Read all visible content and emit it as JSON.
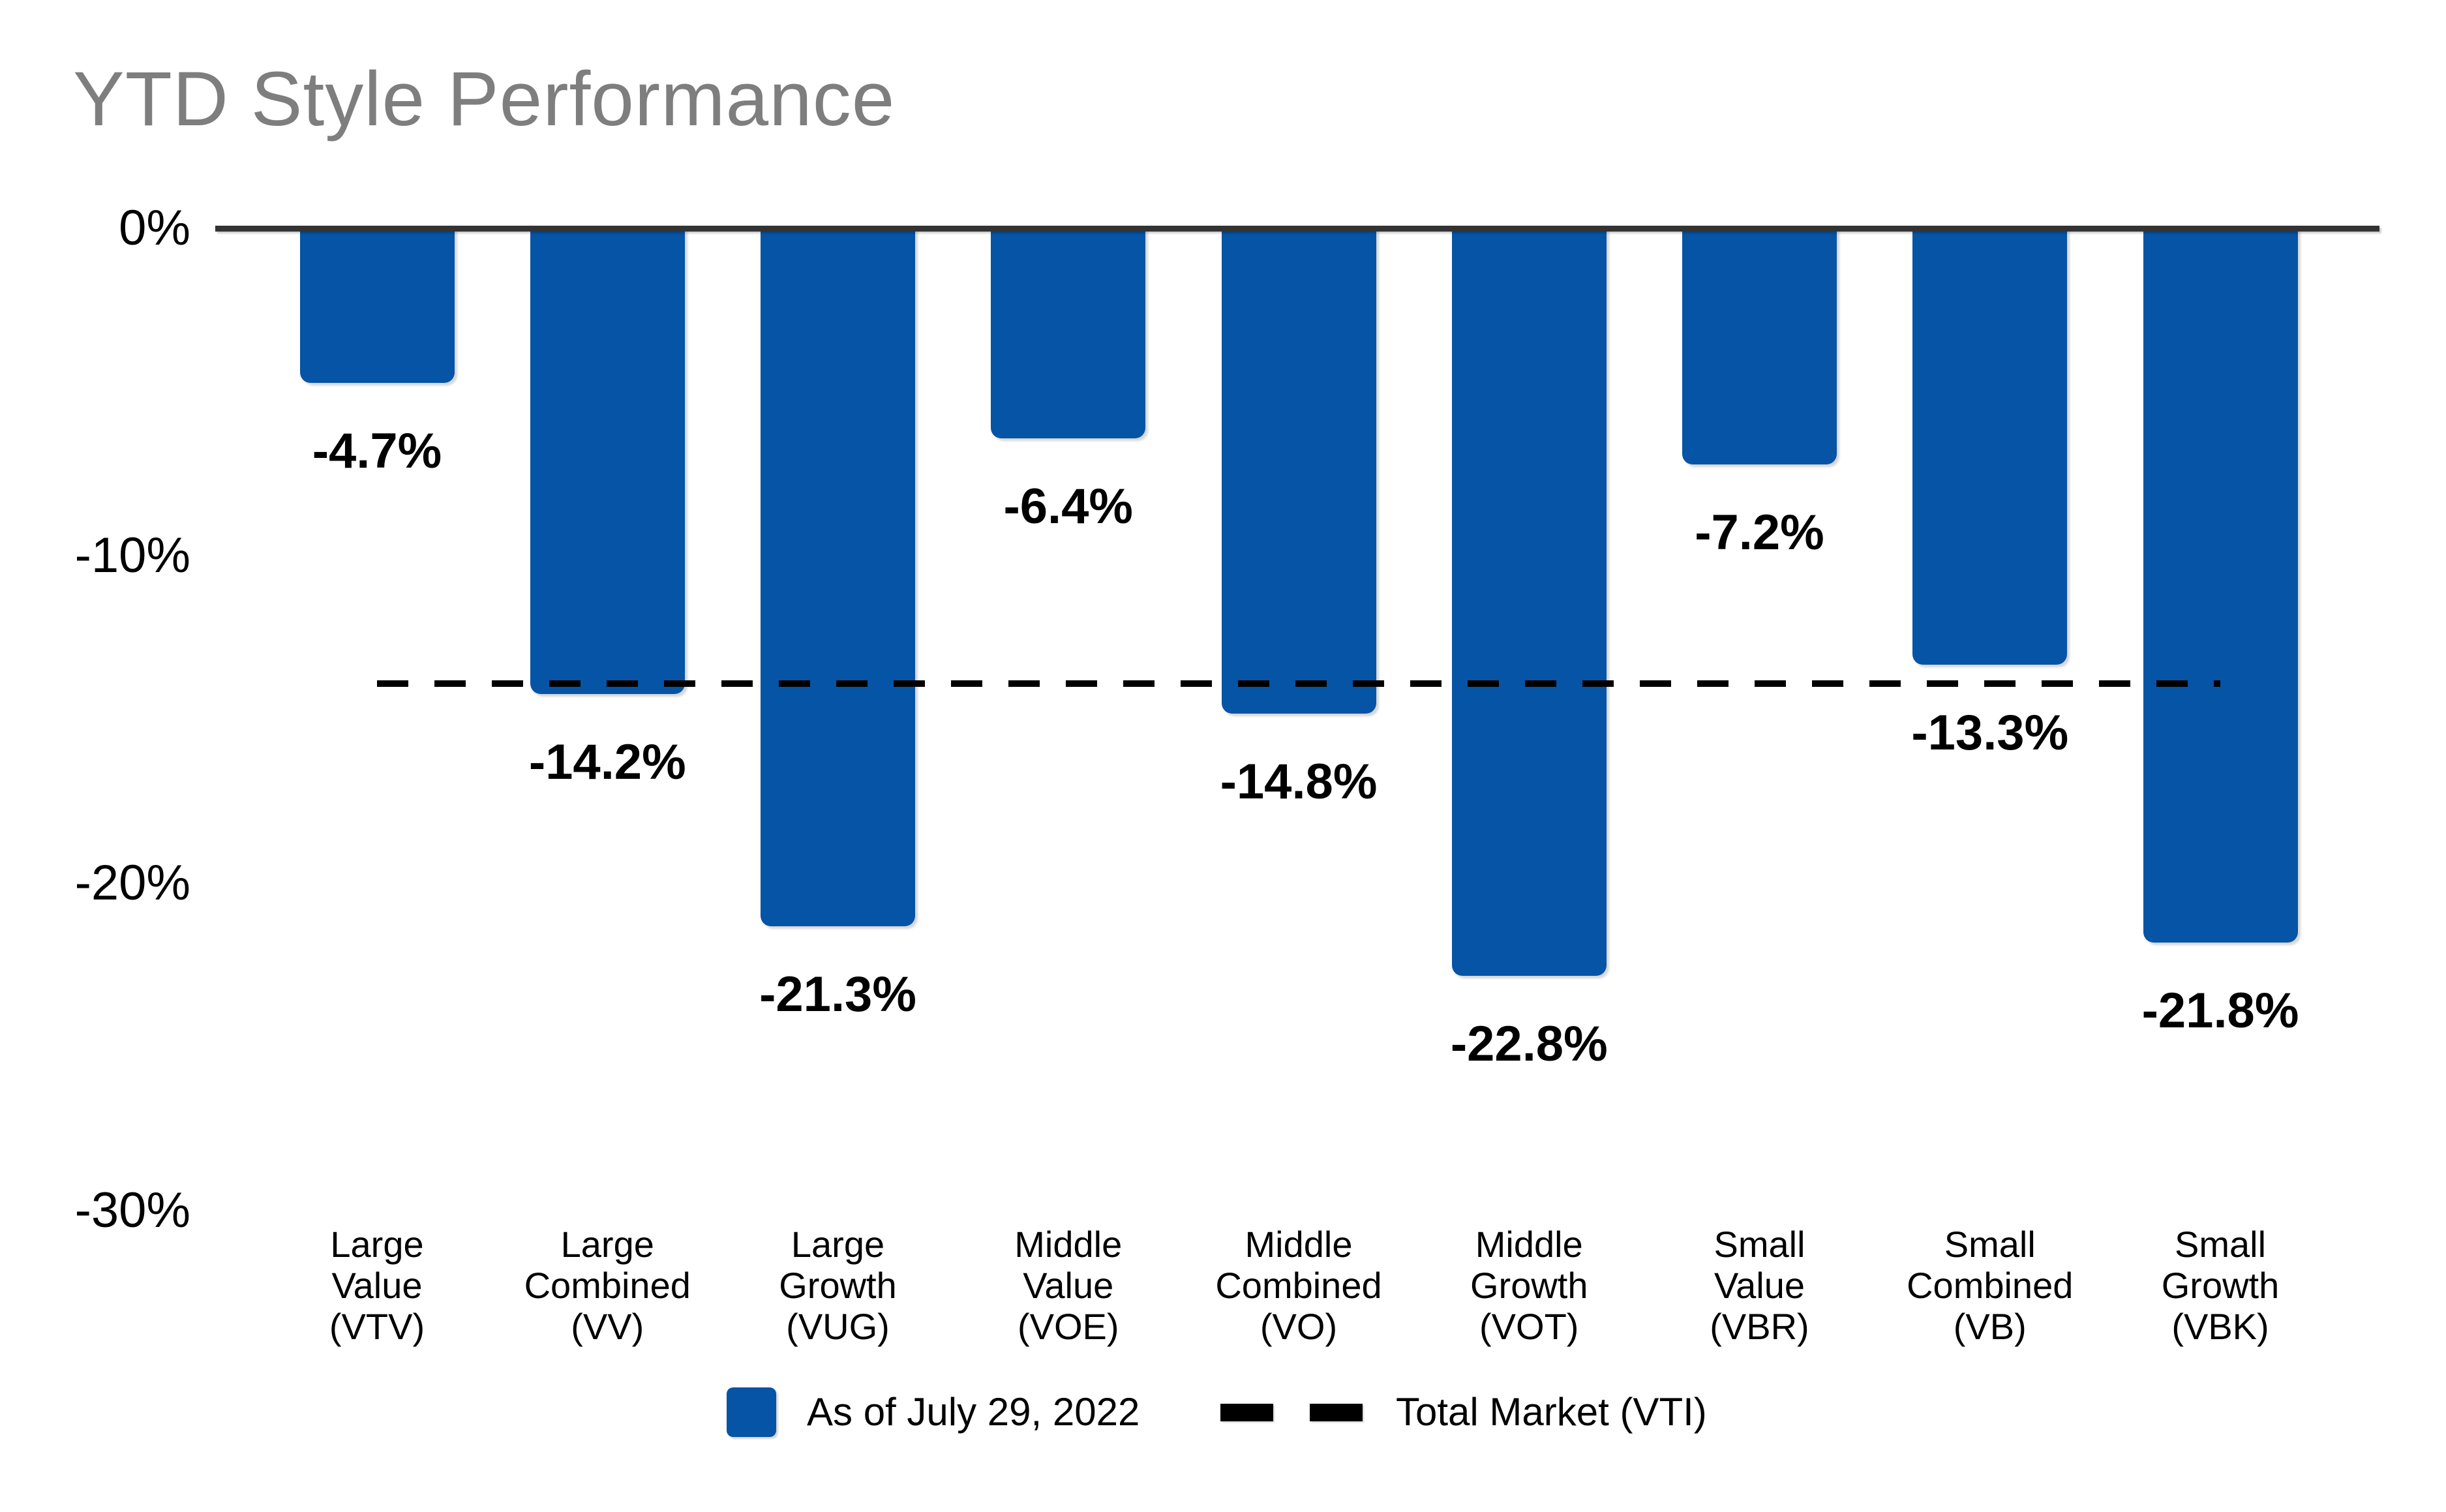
{
  "title": "YTD Style Performance",
  "legend": {
    "series_label": "As of July 29, 2022",
    "line_label": "Total Market (VTI)"
  },
  "colors": {
    "bar": "#0554a6",
    "axis_line": "#333333",
    "dashed_line": "#000000",
    "title_text": "#7e7e7e",
    "label_text": "#000000",
    "background": "#ffffff"
  },
  "chart_data": {
    "type": "bar",
    "title": "YTD Style Performance",
    "categories": [
      "Large Value (VTV)",
      "Large Combined (VV)",
      "Large Growth (VUG)",
      "Middle Value (VOE)",
      "Middle Combined (VO)",
      "Middle Growth (VOT)",
      "Small Value (VBR)",
      "Small Combined (VB)",
      "Small Growth (VBK)"
    ],
    "category_lines": [
      [
        "Large",
        "Value",
        "(VTV)"
      ],
      [
        "Large",
        "Combined",
        "(VV)"
      ],
      [
        "Large",
        "Growth",
        "(VUG)"
      ],
      [
        "Middle",
        "Value",
        "(VOE)"
      ],
      [
        "Middle",
        "Combined",
        "(VO)"
      ],
      [
        "Middle",
        "Growth",
        "(VOT)"
      ],
      [
        "Small",
        "Value",
        "(VBR)"
      ],
      [
        "Small",
        "Combined",
        "(VB)"
      ],
      [
        "Small",
        "Growth",
        "(VBK)"
      ]
    ],
    "values": [
      -4.7,
      -14.2,
      -21.3,
      -6.4,
      -14.8,
      -22.8,
      -7.2,
      -13.3,
      -21.8
    ],
    "data_labels": [
      "-4.7%",
      "-14.2%",
      "-21.3%",
      "-6.4%",
      "-14.8%",
      "-22.8%",
      "-7.2%",
      "-13.3%",
      "-21.8%"
    ],
    "series_name": "As of July 29, 2022",
    "xlabel": "",
    "ylabel": "",
    "ylim": [
      -30,
      0
    ],
    "grid": false,
    "legend_position": "bottom",
    "y_ticks": {
      "values": [
        0,
        -10,
        -20,
        -30
      ],
      "labels": [
        "0%",
        "-10%",
        "-20%",
        "-30%"
      ]
    },
    "reference_line": {
      "name": "Total Market (VTI)",
      "style": "dashed",
      "value": -13.9,
      "value_estimated": true
    }
  }
}
